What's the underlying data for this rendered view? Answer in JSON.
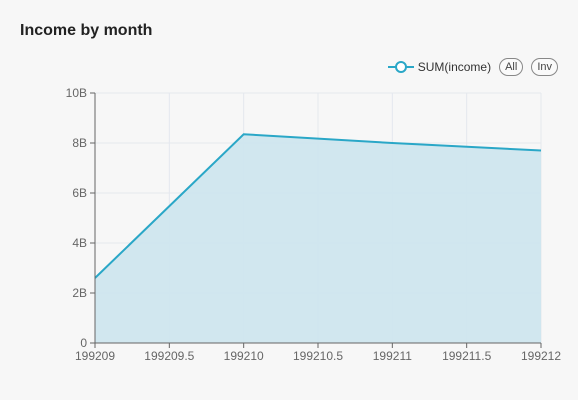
{
  "title": "Income by month",
  "legend": {
    "series_label": "SUM(income)",
    "all_label": "All",
    "inv_label": "Inv"
  },
  "colors": {
    "line": "#2aa7c7",
    "area": "#cfe6ee",
    "grid": "#e4e8ee",
    "axis": "#666666"
  },
  "chart_data": {
    "type": "area",
    "title": "Income by month",
    "xlabel": "",
    "ylabel": "",
    "x": [
      199209,
      199210,
      199211,
      199212
    ],
    "series": [
      {
        "name": "SUM(income)",
        "values": [
          2600000000.0,
          8350000000.0,
          8000000000.0,
          7700000000.0
        ]
      }
    ],
    "xlim": [
      199209,
      199212
    ],
    "ylim": [
      0,
      10000000000
    ],
    "x_ticks": [
      "199209",
      "199209.5",
      "199210",
      "199210.5",
      "199211",
      "199211.5",
      "199212"
    ],
    "y_ticks": [
      "0",
      "2B",
      "4B",
      "6B",
      "8B",
      "10B"
    ],
    "grid": true,
    "legend_position": "top-right"
  }
}
